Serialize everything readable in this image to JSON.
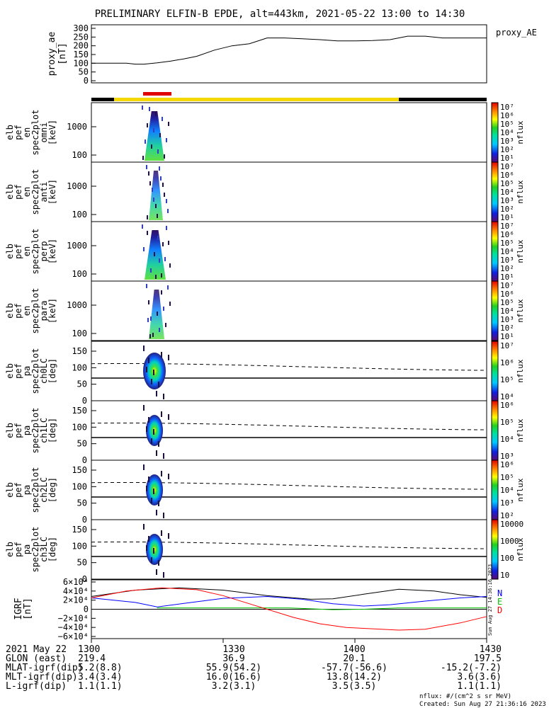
{
  "title": "PRELIMINARY ELFIN-B EPDE, alt=443km, 2021-05-22 13:00 to 14:30",
  "chart_data": {
    "type": "heatmap",
    "time_range": [
      "13:00",
      "14:30"
    ],
    "ae_panel": {
      "ylabel": [
        "proxy_ae",
        "[nT]"
      ],
      "yticks": [
        "300",
        "250",
        "200",
        "150",
        "100",
        "50",
        "0"
      ],
      "ylim": [
        0,
        300
      ],
      "legend": "proxy_AE",
      "t": [
        0,
        4,
        8,
        10,
        12,
        15,
        18,
        21,
        24,
        28,
        32,
        36,
        40,
        44,
        48,
        52,
        56,
        60,
        64,
        68,
        72,
        74,
        76,
        80,
        84,
        90
      ],
      "values": [
        100,
        100,
        100,
        95,
        95,
        102,
        112,
        125,
        140,
        175,
        200,
        212,
        245,
        245,
        240,
        235,
        228,
        228,
        230,
        235,
        255,
        255,
        255,
        245,
        245,
        245
      ]
    },
    "spec_panels": [
      {
        "ylabel": [
          "elb",
          "pef",
          "en",
          "spec2plot",
          "omni",
          "[keV]"
        ],
        "yticks": [
          "1000",
          "100"
        ]
      },
      {
        "ylabel": [
          "elb",
          "pef",
          "en",
          "spec2plot",
          "anti",
          "[keV]"
        ],
        "yticks": [
          "1000",
          "100"
        ]
      },
      {
        "ylabel": [
          "elb",
          "pef",
          "en",
          "spec2plot",
          "perp",
          "[keV]"
        ],
        "yticks": [
          "1000",
          "100"
        ]
      },
      {
        "ylabel": [
          "elb",
          "pef",
          "en",
          "spec2plot",
          "para",
          "[keV]"
        ],
        "yticks": [
          "1000",
          "100"
        ]
      }
    ],
    "pa_panels": [
      {
        "ylabel": [
          "elb",
          "pef",
          "pa",
          "spec2plot",
          "ch0LC",
          "[deg]"
        ],
        "yticks": [
          "150",
          "100",
          "50",
          "0"
        ]
      },
      {
        "ylabel": [
          "elb",
          "pef",
          "pa",
          "spec2plot",
          "ch1LC",
          "[deg]"
        ],
        "yticks": [
          "150",
          "100",
          "50",
          "0"
        ]
      },
      {
        "ylabel": [
          "elb",
          "pef",
          "pa",
          "spec2plot",
          "ch2LC",
          "[deg]"
        ],
        "yticks": [
          "150",
          "100",
          "50",
          "0"
        ]
      },
      {
        "ylabel": [
          "elb",
          "pef",
          "pa",
          "spec2plot",
          "ch3LC",
          "[deg]"
        ],
        "yticks": [
          "150",
          "100",
          "50",
          "0"
        ]
      }
    ],
    "colorbars": [
      {
        "labels": [
          "10⁷",
          "10⁶",
          "10⁵",
          "10⁴",
          "10³",
          "10²",
          "10¹"
        ],
        "unit": "nflux"
      },
      {
        "labels": [
          "10⁷",
          "10⁶",
          "10⁵",
          "10⁴",
          "10³",
          "10²",
          "10¹"
        ],
        "unit": "nflux"
      },
      {
        "labels": [
          "10⁷",
          "10⁶",
          "10⁵",
          "10⁴",
          "10³",
          "10²",
          "10¹"
        ],
        "unit": "nflux"
      },
      {
        "labels": [
          "10⁷",
          "10⁶",
          "10⁵",
          "10⁴",
          "10³",
          "10²",
          "10¹"
        ],
        "unit": "nflux"
      },
      {
        "labels": [
          "10⁷",
          "10⁶",
          "10⁵",
          "10⁴"
        ],
        "unit": "nflux"
      },
      {
        "labels": [
          "10⁶",
          "10⁵",
          "10⁴",
          "10³"
        ],
        "unit": "nflux"
      },
      {
        "labels": [
          "10⁶",
          "10⁵",
          "10⁴",
          "10³",
          "10²"
        ],
        "unit": "nflux"
      },
      {
        "labels": [
          "10000",
          "1000",
          "100",
          "10"
        ],
        "unit": "nflux"
      }
    ],
    "igrf_panel": {
      "ylabel": [
        "IGRF",
        "[nT]"
      ],
      "yticks": [
        "6×10⁴",
        "4×10⁴",
        "2×10⁴",
        "0",
        "−2×10⁴",
        "−4×10⁴",
        "−6×10⁴"
      ],
      "ylim": [
        -60000,
        60000
      ],
      "legend": [
        "N",
        "E",
        "D"
      ],
      "legend_colors": [
        "#0000ff",
        "#00c000",
        "#ff0000"
      ],
      "series": [
        {
          "color": "#000000",
          "t": [
            0,
            10,
            20,
            30,
            40,
            50,
            55,
            62,
            70,
            78,
            84,
            90
          ],
          "values": [
            28000,
            42000,
            47000,
            42000,
            30000,
            22000,
            23000,
            33000,
            44000,
            40000,
            32000,
            26000
          ]
        },
        {
          "color": "#0000ff",
          "t": [
            0,
            10,
            15,
            22,
            30,
            40,
            48,
            55,
            62,
            68,
            76,
            84,
            90
          ],
          "values": [
            25000,
            15000,
            5000,
            14000,
            24000,
            28000,
            22000,
            12000,
            7000,
            10000,
            18000,
            25000,
            28000
          ]
        },
        {
          "color": "#00c000",
          "t": [
            15,
            30,
            45,
            55,
            62,
            70,
            80,
            90
          ],
          "values": [
            3000,
            3000,
            3000,
            -1000,
            0,
            3000,
            3000,
            3000
          ]
        },
        {
          "color": "#ff0000",
          "t": [
            0,
            8,
            16,
            24,
            30,
            36,
            40,
            46,
            52,
            58,
            64,
            70,
            76,
            84,
            90
          ],
          "values": [
            25000,
            40000,
            47000,
            43000,
            30000,
            12000,
            0,
            -18000,
            -32000,
            -40000,
            -43000,
            -46000,
            -44000,
            -30000,
            -16000
          ]
        }
      ]
    },
    "x_labels": [
      "1300",
      "1330",
      "1400",
      "1430"
    ],
    "ephemeris": [
      {
        "name": "2021 May 22",
        "values": [
          "1300",
          "1330",
          "1400",
          "1430"
        ]
      },
      {
        "name": "GLON (east)",
        "values": [
          "219.4",
          "36.9",
          "20.1",
          "197.5"
        ]
      },
      {
        "name": "MLAT-igrf(dip)",
        "values": [
          "5.2(8.8)",
          "55.9(54.2)",
          "-57.7(-56.6)",
          "-15.2(-7.2)"
        ]
      },
      {
        "name": "MLT-igrf(dip)",
        "values": [
          "3.4(3.4)",
          "16.0(16.6)",
          "13.8(14.2)",
          "3.6(3.6)"
        ]
      },
      {
        "name": "L-igrf(dip)",
        "values": [
          "1.1(1.1)",
          "3.2(3.1)",
          "3.5(3.5)",
          "1.1(1.1)"
        ]
      }
    ],
    "footer": [
      "nflux: #/(cm^2 s sr MeV)",
      "Created: Sun Aug 27 21:36:16 2023"
    ],
    "side_stamp": "Sun Aug 27 14:36:16 2023"
  }
}
